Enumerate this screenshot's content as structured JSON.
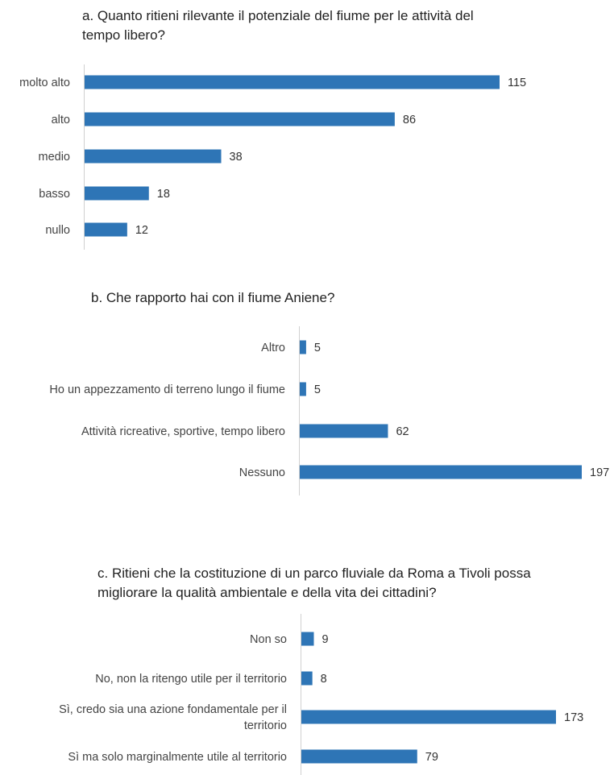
{
  "chart_data": [
    {
      "type": "bar",
      "orientation": "horizontal",
      "title": "a. Quanto ritieni rilevante il potenziale del fiume per le attività  del tempo libero?",
      "title_lines": [
        "a. Quanto ritieni rilevante il potenziale del fiume per le attività  del",
        "tempo libero?"
      ],
      "categories": [
        "molto alto",
        "alto",
        "medio",
        "basso",
        "nullo"
      ],
      "values": [
        115,
        86,
        38,
        18,
        12
      ],
      "data_labels": [
        "115",
        "86",
        "38",
        "18",
        "12"
      ],
      "xlim": [
        0,
        115
      ],
      "color": "#2E75B6",
      "grid": false,
      "xlabel": "",
      "ylabel": ""
    },
    {
      "type": "bar",
      "orientation": "horizontal",
      "title": "b. Che rapporto hai con il fiume Aniene?",
      "title_lines": [
        "b. Che rapporto hai con il fiume Aniene?"
      ],
      "categories": [
        "Altro",
        "Ho un appezzamento di terreno lungo il fiume",
        "Attività  ricreative, sportive, tempo libero",
        "Nessuno"
      ],
      "values": [
        5,
        5,
        62,
        197
      ],
      "data_labels": [
        "5",
        "5",
        "62",
        "197"
      ],
      "xlim": [
        0,
        197
      ],
      "color": "#2E75B6",
      "grid": false,
      "xlabel": "",
      "ylabel": ""
    },
    {
      "type": "bar",
      "orientation": "horizontal",
      "title": "c. Ritieni che la costituzione di un parco fluviale da Roma a Tivoli possa migliorare la qualità ambientale e della vita dei cittadini?",
      "title_lines": [
        "c. Ritieni che la costituzione di un parco fluviale da Roma a Tivoli possa",
        "migliorare la qualità ambientale e della vita dei cittadini?"
      ],
      "categories": [
        "Non so",
        "No, non la ritengo utile per il territorio",
        "Sì, credo sia una azione fondamentale per il territorio",
        "Sì ma solo marginalmente utile al territorio"
      ],
      "category_lines": [
        [
          "Non so"
        ],
        [
          "No, non la ritengo utile per il territorio"
        ],
        [
          "Sì, credo sia una azione fondamentale per il",
          "territorio"
        ],
        [
          "Sì ma solo marginalmente utile al territorio"
        ]
      ],
      "values": [
        9,
        8,
        173,
        79
      ],
      "data_labels": [
        "9",
        "8",
        "173",
        "79"
      ],
      "xlim": [
        0,
        173
      ],
      "color": "#2E75B6",
      "grid": false,
      "xlabel": "",
      "ylabel": ""
    }
  ]
}
